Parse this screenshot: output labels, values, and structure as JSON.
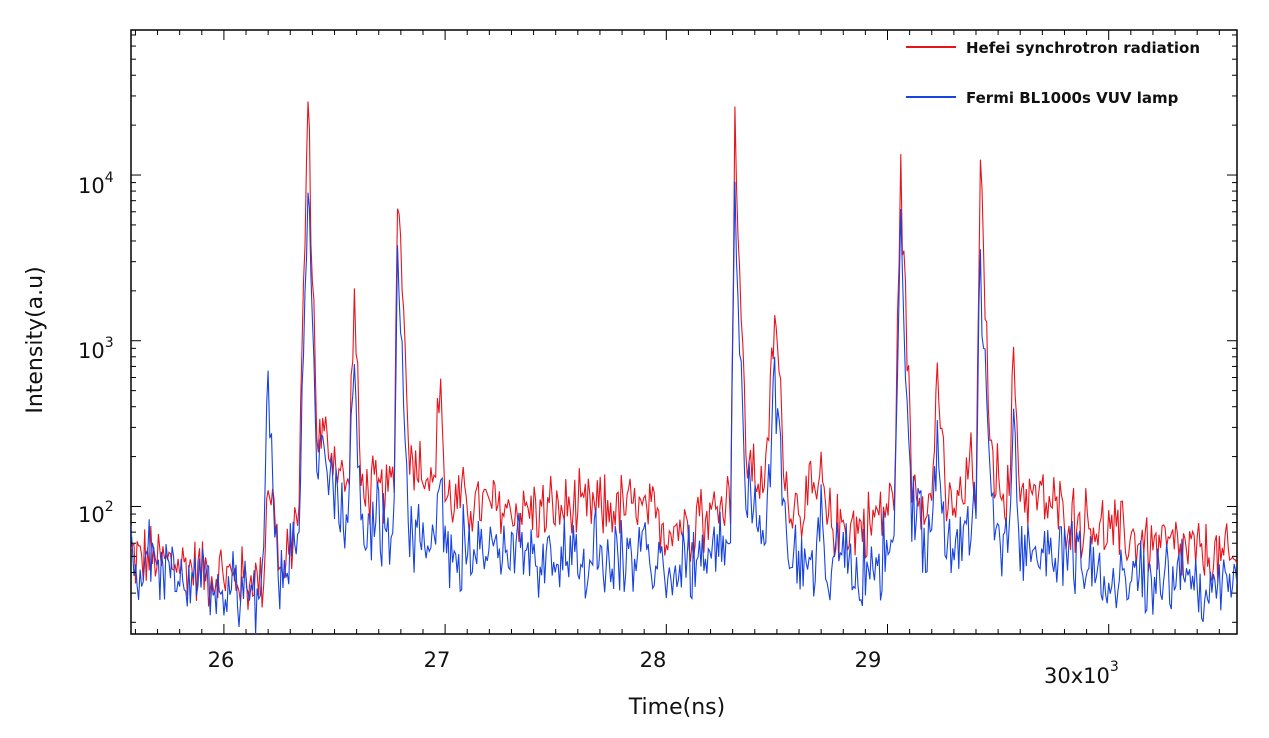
{
  "chart_data": {
    "type": "line",
    "xlabel": "Time(ns)",
    "ylabel": "Intensity(a.u)",
    "x_scale_label": "30x10",
    "x_scale_exponent": "3",
    "xlim": [
      25580,
      30580
    ],
    "ylim": [
      17,
      75000
    ],
    "y_scale": "log",
    "x_ticks": [
      26000,
      27000,
      28000,
      29000
    ],
    "x_tick_labels": [
      "26",
      "27",
      "28",
      "29"
    ],
    "y_ticks": [
      100,
      1000,
      10000
    ],
    "y_tick_labels": [
      "10",
      "10",
      "10"
    ],
    "y_tick_exponents": [
      "2",
      "3",
      "4"
    ],
    "legend_position": "top-right",
    "series": [
      {
        "name": "Hefei synchrotron radiation",
        "color": "#e8141c",
        "noise_amplitude": 0.22,
        "points": [
          [
            25580,
            50
          ],
          [
            25800,
            45
          ],
          [
            26000,
            38
          ],
          [
            26150,
            35
          ],
          [
            26180,
            40
          ],
          [
            26200,
            160
          ],
          [
            26240,
            70
          ],
          [
            26260,
            35
          ],
          [
            26300,
            50
          ],
          [
            26340,
            130
          ],
          [
            26380,
            27000
          ],
          [
            26420,
            300
          ],
          [
            26500,
            200
          ],
          [
            26560,
            120
          ],
          [
            26590,
            1700
          ],
          [
            26620,
            130
          ],
          [
            26700,
            120
          ],
          [
            26770,
            130
          ],
          [
            26785,
            10500
          ],
          [
            26840,
            200
          ],
          [
            26900,
            180
          ],
          [
            26950,
            130
          ],
          [
            26980,
            650
          ],
          [
            27000,
            110
          ],
          [
            27300,
            95
          ],
          [
            27600,
            95
          ],
          [
            27850,
            100
          ],
          [
            28000,
            75
          ],
          [
            28130,
            80
          ],
          [
            28150,
            120
          ],
          [
            28170,
            80
          ],
          [
            28290,
            120
          ],
          [
            28310,
            20000
          ],
          [
            28360,
            200
          ],
          [
            28450,
            130
          ],
          [
            28490,
            1500
          ],
          [
            28550,
            100
          ],
          [
            28680,
            110
          ],
          [
            28700,
            170
          ],
          [
            28720,
            80
          ],
          [
            28900,
            75
          ],
          [
            29030,
            110
          ],
          [
            29060,
            10000
          ],
          [
            29110,
            150
          ],
          [
            29200,
            100
          ],
          [
            29225,
            750
          ],
          [
            29260,
            100
          ],
          [
            29350,
            110
          ],
          [
            29370,
            190
          ],
          [
            29400,
            130
          ],
          [
            29420,
            9500
          ],
          [
            29470,
            180
          ],
          [
            29550,
            110
          ],
          [
            29570,
            780
          ],
          [
            29600,
            130
          ],
          [
            29800,
            90
          ],
          [
            30000,
            70
          ],
          [
            30200,
            60
          ],
          [
            30400,
            52
          ],
          [
            30580,
            45
          ]
        ]
      },
      {
        "name": "Fermi BL1000s VUV lamp",
        "color": "#1743e0",
        "noise_amplitude": 0.26,
        "points": [
          [
            25580,
            45
          ],
          [
            25800,
            40
          ],
          [
            26000,
            34
          ],
          [
            26150,
            30
          ],
          [
            26180,
            40
          ],
          [
            26200,
            760
          ],
          [
            26230,
            70
          ],
          [
            26260,
            40
          ],
          [
            26300,
            50
          ],
          [
            26340,
            80
          ],
          [
            26380,
            11000
          ],
          [
            26420,
            200
          ],
          [
            26500,
            110
          ],
          [
            26560,
            80
          ],
          [
            26590,
            800
          ],
          [
            26620,
            80
          ],
          [
            26700,
            70
          ],
          [
            26770,
            80
          ],
          [
            26785,
            3400
          ],
          [
            26840,
            80
          ],
          [
            26900,
            70
          ],
          [
            26950,
            60
          ],
          [
            26980,
            260
          ],
          [
            27000,
            60
          ],
          [
            27300,
            52
          ],
          [
            27600,
            50
          ],
          [
            27850,
            52
          ],
          [
            28000,
            42
          ],
          [
            28130,
            44
          ],
          [
            28150,
            70
          ],
          [
            28170,
            44
          ],
          [
            28290,
            60
          ],
          [
            28310,
            8500
          ],
          [
            28360,
            120
          ],
          [
            28450,
            65
          ],
          [
            28490,
            580
          ],
          [
            28550,
            55
          ],
          [
            28680,
            50
          ],
          [
            28700,
            70
          ],
          [
            28720,
            45
          ],
          [
            28900,
            40
          ],
          [
            29030,
            55
          ],
          [
            29060,
            4100
          ],
          [
            29110,
            90
          ],
          [
            29200,
            60
          ],
          [
            29225,
            320
          ],
          [
            29260,
            55
          ],
          [
            29350,
            60
          ],
          [
            29370,
            90
          ],
          [
            29400,
            80
          ],
          [
            29420,
            3300
          ],
          [
            29470,
            80
          ],
          [
            29550,
            60
          ],
          [
            29570,
            290
          ],
          [
            29600,
            60
          ],
          [
            29800,
            50
          ],
          [
            30000,
            42
          ],
          [
            30200,
            38
          ],
          [
            30400,
            35
          ],
          [
            30580,
            34
          ]
        ]
      }
    ]
  }
}
